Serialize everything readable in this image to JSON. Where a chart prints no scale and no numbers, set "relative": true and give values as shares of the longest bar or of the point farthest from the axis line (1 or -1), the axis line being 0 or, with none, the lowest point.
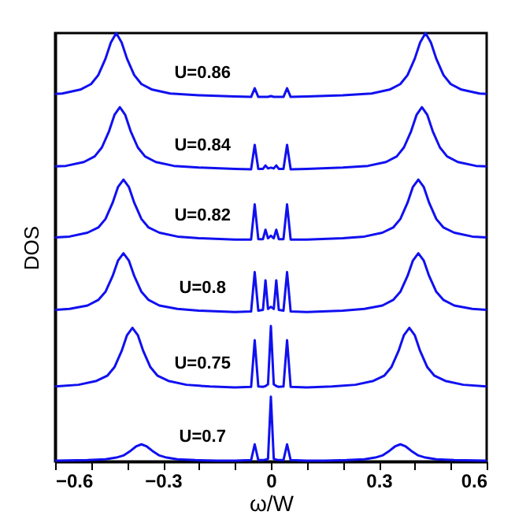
{
  "chart_data": {
    "type": "line",
    "relative": true,
    "xlabel": "ω/W",
    "ylabel": "DOS",
    "xlim": [
      -0.6,
      0.6
    ],
    "xticks": [
      -0.6,
      {
        "value": -0.5,
        "label": null
      },
      {
        "value": -0.4,
        "label": null
      },
      -0.3,
      {
        "value": -0.2,
        "label": null
      },
      {
        "value": -0.1,
        "label": null
      },
      0,
      {
        "value": 0.1,
        "label": null
      },
      {
        "value": 0.2,
        "label": null
      },
      0.3,
      {
        "value": 0.4,
        "label": null
      },
      {
        "value": 0.5,
        "label": null
      },
      0.6
    ],
    "series": [
      {
        "name": "U=0.86",
        "color": "#1010f0",
        "x": [
          -0.6,
          -0.58,
          -0.53,
          -0.5,
          -0.48,
          -0.46,
          -0.445,
          -0.43,
          -0.415,
          -0.4,
          -0.38,
          -0.36,
          -0.33,
          -0.28,
          -0.2,
          -0.1,
          -0.055,
          -0.045,
          -0.035,
          -0.022,
          -0.015,
          -0.008,
          0,
          0.008,
          0.015,
          0.022,
          0.035,
          0.045,
          0.055,
          0.1,
          0.2,
          0.28,
          0.33,
          0.36,
          0.38,
          0.4,
          0.415,
          0.43,
          0.445,
          0.46,
          0.48,
          0.5,
          0.53,
          0.58,
          0.6
        ],
        "values": [
          0.858,
          0.859,
          0.868,
          0.881,
          0.902,
          0.94,
          0.978,
          1.0,
          0.978,
          0.94,
          0.902,
          0.881,
          0.868,
          0.859,
          0.855,
          0.852,
          0.851,
          0.871,
          0.851,
          0.851,
          0.851,
          0.851,
          0.853,
          0.851,
          0.851,
          0.851,
          0.851,
          0.871,
          0.851,
          0.852,
          0.855,
          0.859,
          0.868,
          0.881,
          0.902,
          0.94,
          0.978,
          1.0,
          0.978,
          0.94,
          0.902,
          0.881,
          0.868,
          0.859,
          0.858
        ]
      },
      {
        "name": "U=0.84",
        "color": "#1010f0",
        "x": [
          -0.6,
          -0.57,
          -0.52,
          -0.49,
          -0.47,
          -0.45,
          -0.435,
          -0.42,
          -0.405,
          -0.39,
          -0.37,
          -0.35,
          -0.32,
          -0.27,
          -0.2,
          -0.1,
          -0.055,
          -0.045,
          -0.035,
          -0.022,
          -0.015,
          -0.008,
          0,
          0.008,
          0.015,
          0.022,
          0.035,
          0.045,
          0.055,
          0.1,
          0.2,
          0.27,
          0.32,
          0.35,
          0.37,
          0.39,
          0.405,
          0.42,
          0.435,
          0.45,
          0.47,
          0.49,
          0.52,
          0.57,
          0.6
        ],
        "values": [
          0.689,
          0.69,
          0.699,
          0.712,
          0.733,
          0.771,
          0.809,
          0.827,
          0.809,
          0.771,
          0.733,
          0.712,
          0.699,
          0.69,
          0.686,
          0.683,
          0.682,
          0.739,
          0.683,
          0.683,
          0.691,
          0.684,
          0.686,
          0.684,
          0.691,
          0.683,
          0.683,
          0.739,
          0.682,
          0.683,
          0.686,
          0.69,
          0.699,
          0.712,
          0.733,
          0.771,
          0.809,
          0.827,
          0.809,
          0.771,
          0.733,
          0.712,
          0.699,
          0.69,
          0.689
        ]
      },
      {
        "name": "U=0.82",
        "color": "#1010f0",
        "x": [
          -0.6,
          -0.56,
          -0.51,
          -0.48,
          -0.46,
          -0.44,
          -0.425,
          -0.41,
          -0.395,
          -0.38,
          -0.36,
          -0.34,
          -0.31,
          -0.26,
          -0.2,
          -0.1,
          -0.055,
          -0.045,
          -0.035,
          -0.022,
          -0.015,
          -0.008,
          0,
          0.008,
          0.015,
          0.022,
          0.035,
          0.045,
          0.055,
          0.1,
          0.2,
          0.26,
          0.31,
          0.34,
          0.36,
          0.38,
          0.395,
          0.41,
          0.425,
          0.44,
          0.46,
          0.48,
          0.51,
          0.56,
          0.6
        ],
        "values": [
          0.523,
          0.525,
          0.534,
          0.546,
          0.566,
          0.604,
          0.641,
          0.658,
          0.641,
          0.604,
          0.566,
          0.546,
          0.534,
          0.525,
          0.521,
          0.518,
          0.518,
          0.6,
          0.519,
          0.519,
          0.541,
          0.521,
          0.527,
          0.521,
          0.541,
          0.519,
          0.519,
          0.6,
          0.518,
          0.518,
          0.521,
          0.525,
          0.534,
          0.546,
          0.566,
          0.604,
          0.641,
          0.658,
          0.641,
          0.604,
          0.566,
          0.546,
          0.534,
          0.525,
          0.523
        ]
      },
      {
        "name": "U=0.8",
        "color": "#1010f0",
        "x": [
          -0.6,
          -0.56,
          -0.51,
          -0.48,
          -0.46,
          -0.44,
          -0.425,
          -0.41,
          -0.395,
          -0.38,
          -0.36,
          -0.34,
          -0.31,
          -0.26,
          -0.2,
          -0.1,
          -0.055,
          -0.045,
          -0.035,
          -0.022,
          -0.015,
          -0.008,
          0,
          0.008,
          0.015,
          0.022,
          0.035,
          0.045,
          0.055,
          0.1,
          0.2,
          0.26,
          0.31,
          0.34,
          0.36,
          0.38,
          0.395,
          0.41,
          0.425,
          0.44,
          0.46,
          0.48,
          0.51,
          0.56,
          0.6
        ],
        "values": [
          0.354,
          0.356,
          0.364,
          0.377,
          0.396,
          0.433,
          0.469,
          0.486,
          0.469,
          0.433,
          0.396,
          0.377,
          0.364,
          0.356,
          0.352,
          0.349,
          0.35,
          0.442,
          0.352,
          0.354,
          0.423,
          0.356,
          0.361,
          0.356,
          0.423,
          0.354,
          0.352,
          0.442,
          0.35,
          0.349,
          0.352,
          0.356,
          0.364,
          0.377,
          0.396,
          0.433,
          0.469,
          0.486,
          0.469,
          0.433,
          0.396,
          0.377,
          0.364,
          0.356,
          0.354
        ]
      },
      {
        "name": "U=0.75",
        "color": "#1010f0",
        "x": [
          -0.6,
          -0.535,
          -0.485,
          -0.455,
          -0.435,
          -0.415,
          -0.4,
          -0.385,
          -0.37,
          -0.355,
          -0.335,
          -0.315,
          -0.285,
          -0.235,
          -0.17,
          -0.1,
          -0.055,
          -0.045,
          -0.035,
          -0.022,
          -0.015,
          -0.008,
          0,
          0.008,
          0.015,
          0.022,
          0.035,
          0.045,
          0.055,
          0.1,
          0.17,
          0.235,
          0.285,
          0.315,
          0.335,
          0.355,
          0.37,
          0.385,
          0.4,
          0.415,
          0.435,
          0.455,
          0.485,
          0.535,
          0.6
        ],
        "values": [
          0.175,
          0.179,
          0.188,
          0.2,
          0.22,
          0.258,
          0.295,
          0.312,
          0.295,
          0.258,
          0.22,
          0.2,
          0.188,
          0.179,
          0.175,
          0.173,
          0.174,
          0.283,
          0.175,
          0.174,
          0.176,
          0.18,
          0.316,
          0.18,
          0.176,
          0.174,
          0.175,
          0.283,
          0.174,
          0.173,
          0.175,
          0.179,
          0.188,
          0.2,
          0.22,
          0.258,
          0.295,
          0.312,
          0.295,
          0.258,
          0.22,
          0.2,
          0.188,
          0.179,
          0.175
        ]
      },
      {
        "name": "U=0.7",
        "color": "#1010f0",
        "x": [
          -0.6,
          -0.51,
          -0.46,
          -0.43,
          -0.41,
          -0.39,
          -0.375,
          -0.36,
          -0.345,
          -0.33,
          -0.31,
          -0.29,
          -0.26,
          -0.21,
          -0.15,
          -0.1,
          -0.055,
          -0.045,
          -0.035,
          -0.022,
          -0.015,
          -0.008,
          0,
          0.008,
          0.015,
          0.022,
          0.035,
          0.045,
          0.055,
          0.1,
          0.15,
          0.21,
          0.26,
          0.29,
          0.31,
          0.33,
          0.345,
          0.36,
          0.375,
          0.39,
          0.41,
          0.43,
          0.46,
          0.51,
          0.6
        ],
        "values": [
          0.002,
          0.003,
          0.005,
          0.009,
          0.014,
          0.025,
          0.035,
          0.04,
          0.035,
          0.025,
          0.014,
          0.009,
          0.005,
          0.003,
          0.002,
          0.002,
          0.003,
          0.04,
          0.003,
          0.003,
          0.004,
          0.006,
          0.151,
          0.006,
          0.004,
          0.003,
          0.003,
          0.04,
          0.003,
          0.002,
          0.002,
          0.003,
          0.005,
          0.009,
          0.014,
          0.025,
          0.035,
          0.04,
          0.035,
          0.025,
          0.014,
          0.009,
          0.005,
          0.003,
          0.002
        ]
      }
    ]
  }
}
